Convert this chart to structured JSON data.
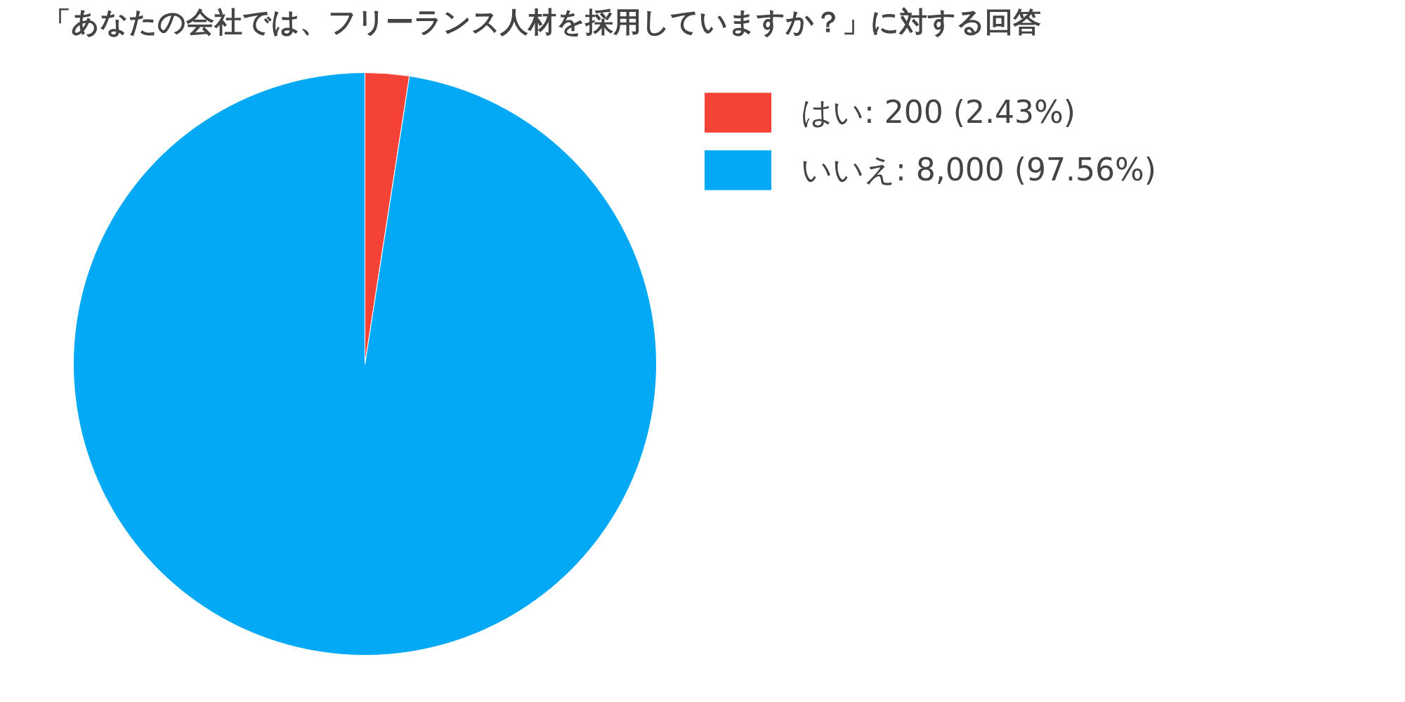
{
  "chart_data": {
    "type": "pie",
    "title": "「あなたの会社では、フリーランス人材を採用していますか？」に対する回答",
    "categories": [
      "はい",
      "いいえ"
    ],
    "values": [
      200,
      8000
    ],
    "value_labels": [
      "200 (2.43%)",
      "8,000 (97.56%)"
    ],
    "colors": [
      "#f44336",
      "#03a9f4"
    ],
    "legend": "top right"
  }
}
